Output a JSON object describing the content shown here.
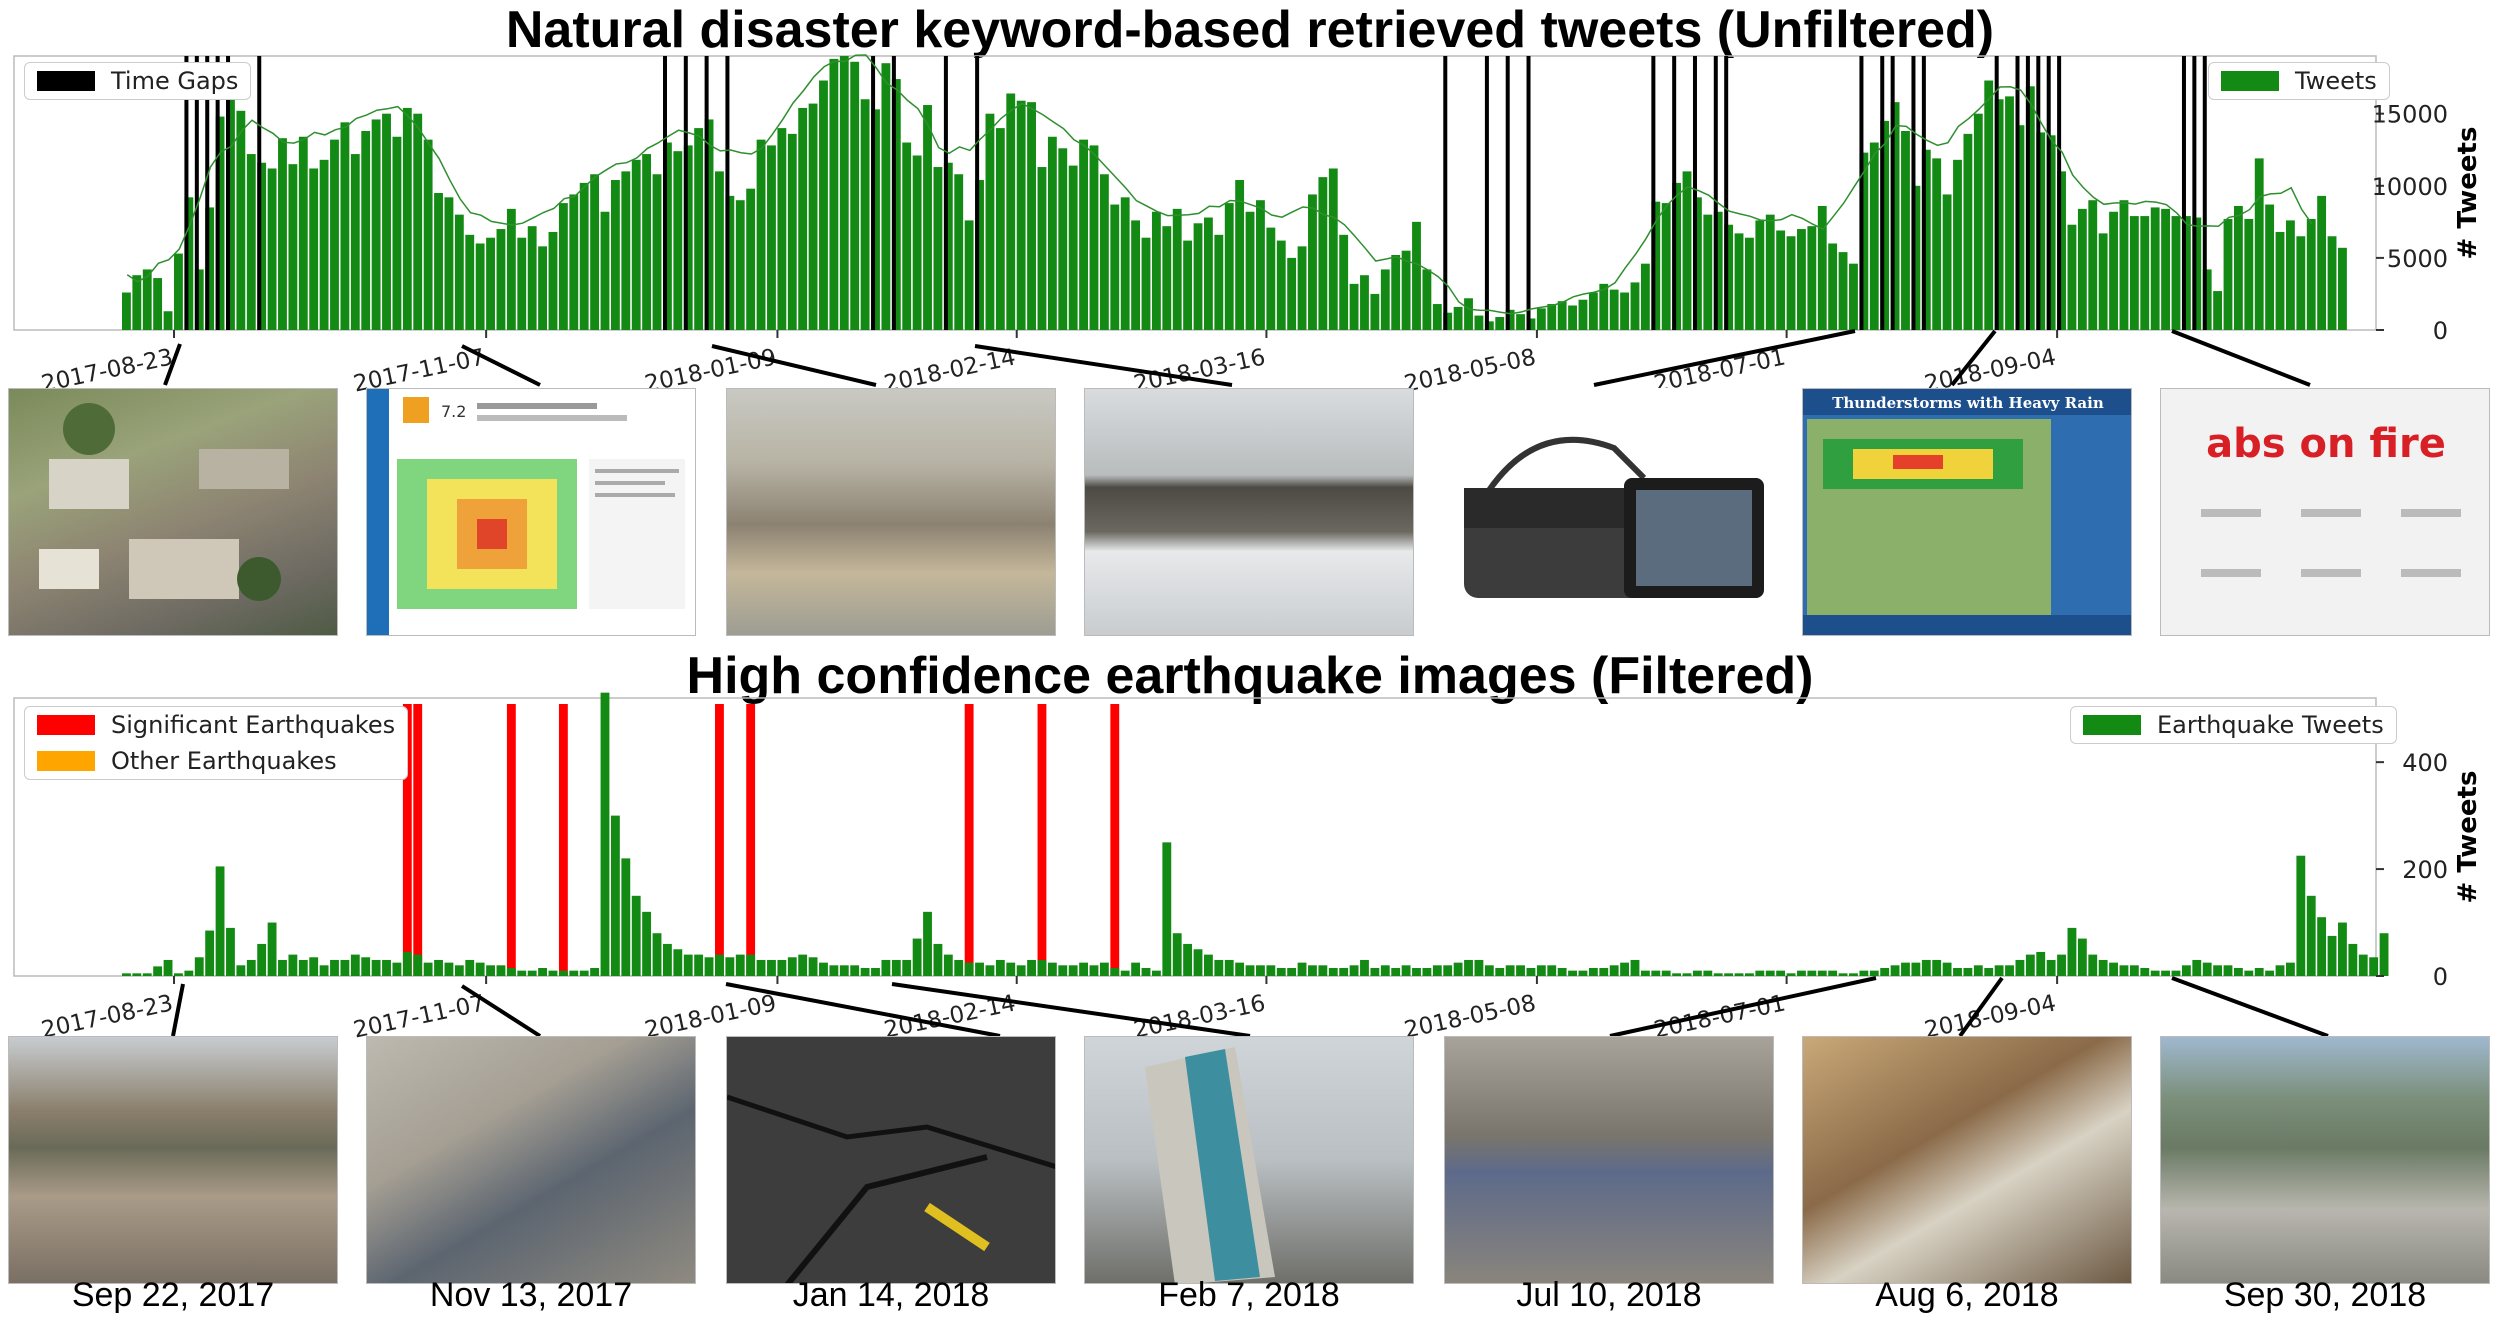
{
  "top": {
    "title": "Natural disaster keyword-based retrieved tweets (Unfiltered)",
    "legend": {
      "gaps": "Time Gaps",
      "tweets": "Tweets"
    },
    "ylabel": "# Tweets",
    "yticks": [
      "0",
      "5000",
      "10000",
      "15000"
    ],
    "xticks": [
      "2017-08-23",
      "2017-11-07",
      "2018-01-09",
      "2018-02-14",
      "2018-03-16",
      "2018-05-08",
      "2018-07-01",
      "2018-09-04"
    ]
  },
  "bottom": {
    "title": "High confidence earthquake images (Filtered)",
    "legend": {
      "significant": "Significant Earthquakes",
      "other": "Other Earthquakes",
      "tweets": "Earthquake Tweets"
    },
    "ylabel": "# Tweets",
    "yticks": [
      "0",
      "200",
      "400"
    ],
    "xticks": [
      "2017-08-23",
      "2017-11-07",
      "2018-01-09",
      "2018-02-14",
      "2018-03-16",
      "2018-05-08",
      "2018-07-01",
      "2018-09-04"
    ]
  },
  "colors": {
    "tweets": "#138a13",
    "gap": "#000000",
    "significant": "#ff0000",
    "other": "#ffa500",
    "line": "#2f8f2f"
  },
  "photos_top": [
    {
      "label": "",
      "icon": "damaged-houses-photo"
    },
    {
      "label": "7.2",
      "icon": "shakemap-document"
    },
    {
      "label": "",
      "icon": "beach-cliff-photo"
    },
    {
      "label": "",
      "icon": "snowy-road-photo"
    },
    {
      "label": "",
      "icon": "messenger-bag-tablet-photo"
    },
    {
      "label": "Thunderstorms with Heavy Rain",
      "icon": "weather-map"
    },
    {
      "label": "abs on fire",
      "icon": "workout-poster"
    }
  ],
  "photos_bottom": [
    {
      "icon": "hurricane-damage-photo"
    },
    {
      "icon": "collapsed-rubble-photo"
    },
    {
      "icon": "cracked-road-photo"
    },
    {
      "icon": "tilted-building-photo"
    },
    {
      "icon": "destroyed-truck-photo"
    },
    {
      "icon": "collapsed-roof-photo"
    },
    {
      "icon": "aerial-destruction-photo"
    }
  ],
  "captions": [
    "Sep 22, 2017",
    "Nov 13, 2017",
    "Jan 14, 2018",
    "Feb 7, 2018",
    "Jul 10, 2018",
    "Aug 6, 2018",
    "Sep 30, 2018"
  ],
  "chart_data": [
    {
      "type": "bar",
      "title": "Natural disaster keyword-based retrieved tweets (Unfiltered)",
      "ylabel": "# Tweets",
      "ylim": [
        0,
        19000
      ],
      "bin_count": 208,
      "x_tick_labels": [
        "2017-08-23",
        "2017-11-07",
        "2018-01-09",
        "2018-02-14",
        "2018-03-16",
        "2018-05-08",
        "2018-07-01",
        "2018-09-04"
      ],
      "x_tick_bins": [
        5,
        35,
        63,
        86,
        110,
        136,
        160,
        186
      ],
      "values": [
        2600,
        3800,
        4200,
        3600,
        1300,
        5300,
        9200,
        4200,
        8500,
        14800,
        16000,
        15200,
        12200,
        11600,
        11200,
        13300,
        11500,
        13400,
        11200,
        11800,
        13200,
        14400,
        12200,
        13800,
        14600,
        15000,
        13400,
        15400,
        15000,
        13200,
        9500,
        9200,
        8000,
        6600,
        6000,
        6400,
        7000,
        8400,
        6400,
        7200,
        5800,
        6800,
        8800,
        9400,
        10200,
        10800,
        8200,
        10400,
        11000,
        11800,
        12200,
        10800,
        13000,
        12400,
        12800,
        14000,
        14600,
        11000,
        9300,
        9000,
        9800,
        13200,
        12800,
        14000,
        13600,
        15400,
        15700,
        17300,
        18800,
        19000,
        18600,
        16000,
        15300,
        18500,
        17400,
        13000,
        12100,
        15600,
        11300,
        11600,
        10800,
        7600,
        10400,
        15000,
        14000,
        16400,
        15900,
        15800,
        11300,
        13400,
        12600,
        11400,
        13200,
        12800,
        10800,
        8700,
        9200,
        7600,
        6400,
        8200,
        7200,
        8400,
        6200,
        7400,
        7800,
        6600,
        8800,
        10400,
        8200,
        9000,
        7100,
        6200,
        5000,
        5800,
        9400,
        10600,
        11200,
        6600,
        3200,
        3800,
        2500,
        4200,
        5200,
        5500,
        7500,
        4200,
        1800,
        1200,
        1600,
        2200,
        1000,
        600,
        900,
        1400,
        1100,
        800,
        1500,
        1800,
        2000,
        1700,
        2100,
        2600,
        3200,
        2800,
        2600,
        3300,
        4600,
        8900,
        8800,
        10200,
        11000,
        9200,
        8000,
        8200,
        7300,
        6700,
        6400,
        7600,
        8000,
        6900,
        6500,
        7000,
        7200,
        8600,
        6000,
        5400,
        4600,
        12300,
        13000,
        14500,
        15800,
        13800,
        10000,
        12500,
        11900,
        9400,
        11800,
        13600,
        15000,
        17300,
        16000,
        16200,
        14200,
        16900,
        13700,
        13500,
        11000,
        7300,
        8400,
        9000,
        6700,
        8200,
        9000,
        7900,
        7900,
        8500,
        8400,
        7900,
        7900,
        7800,
        4200,
        2700,
        7700,
        8600,
        7700,
        11900,
        8700,
        6800,
        7600,
        6500,
        7700,
        9300,
        6500,
        5700
      ],
      "line_type": "line",
      "time_gap_bins": [
        6,
        7,
        8,
        9,
        10,
        13,
        52,
        54,
        56,
        58,
        72,
        74,
        79,
        82,
        127,
        131,
        133,
        135,
        147,
        149,
        151,
        153,
        154,
        167,
        169,
        170,
        172,
        173,
        180,
        182,
        183,
        184,
        185,
        186,
        198,
        199,
        200
      ],
      "series": [
        {
          "name": "Tweets"
        },
        {
          "name": "Time Gaps"
        }
      ]
    },
    {
      "type": "bar",
      "title": "High confidence earthquake images (Filtered)",
      "ylabel": "# Tweets",
      "ylim": [
        0,
        520
      ],
      "bin_count": 208,
      "x_tick_labels": [
        "2017-08-23",
        "2017-11-07",
        "2018-01-09",
        "2018-02-14",
        "2018-03-16",
        "2018-05-08",
        "2018-07-01",
        "2018-09-04"
      ],
      "x_tick_bins": [
        5,
        35,
        63,
        86,
        110,
        136,
        160,
        186
      ],
      "values": [
        5,
        5,
        5,
        18,
        30,
        5,
        10,
        35,
        85,
        205,
        90,
        20,
        30,
        60,
        100,
        30,
        40,
        30,
        35,
        20,
        30,
        30,
        40,
        35,
        30,
        30,
        25,
        45,
        40,
        25,
        30,
        25,
        20,
        30,
        25,
        20,
        20,
        15,
        10,
        10,
        15,
        10,
        10,
        10,
        10,
        15,
        530,
        300,
        220,
        150,
        120,
        80,
        60,
        50,
        40,
        40,
        35,
        40,
        35,
        40,
        40,
        30,
        30,
        30,
        35,
        40,
        35,
        25,
        20,
        20,
        20,
        15,
        15,
        30,
        30,
        30,
        70,
        120,
        60,
        40,
        30,
        25,
        25,
        20,
        30,
        25,
        20,
        30,
        30,
        25,
        20,
        20,
        25,
        20,
        25,
        15,
        10,
        25,
        15,
        10,
        250,
        80,
        60,
        50,
        40,
        30,
        30,
        25,
        20,
        20,
        20,
        15,
        15,
        25,
        20,
        20,
        15,
        15,
        20,
        30,
        15,
        20,
        15,
        20,
        15,
        15,
        20,
        20,
        25,
        30,
        30,
        20,
        15,
        20,
        20,
        15,
        20,
        20,
        15,
        10,
        10,
        15,
        15,
        20,
        25,
        30,
        10,
        10,
        10,
        5,
        5,
        10,
        10,
        5,
        5,
        5,
        5,
        10,
        10,
        10,
        5,
        10,
        10,
        10,
        10,
        5,
        5,
        10,
        10,
        15,
        20,
        25,
        25,
        30,
        30,
        25,
        15,
        15,
        20,
        15,
        20,
        20,
        30,
        40,
        45,
        30,
        40,
        90,
        70,
        40,
        30,
        25,
        20,
        20,
        15,
        10,
        10,
        10,
        20,
        30,
        25,
        20,
        20,
        15,
        10,
        15,
        10,
        20,
        25,
        225,
        150,
        110,
        75,
        100,
        60,
        40,
        35,
        80
      ],
      "significant_bins": [
        [
          27,
          28
        ],
        [
          37
        ],
        [
          42
        ],
        [
          57
        ],
        [
          60
        ],
        [
          81
        ],
        [
          88
        ],
        [
          95
        ]
      ],
      "other_bins": [],
      "series": [
        {
          "name": "Earthquake Tweets"
        },
        {
          "name": "Significant Earthquakes"
        },
        {
          "name": "Other Earthquakes"
        }
      ]
    }
  ]
}
